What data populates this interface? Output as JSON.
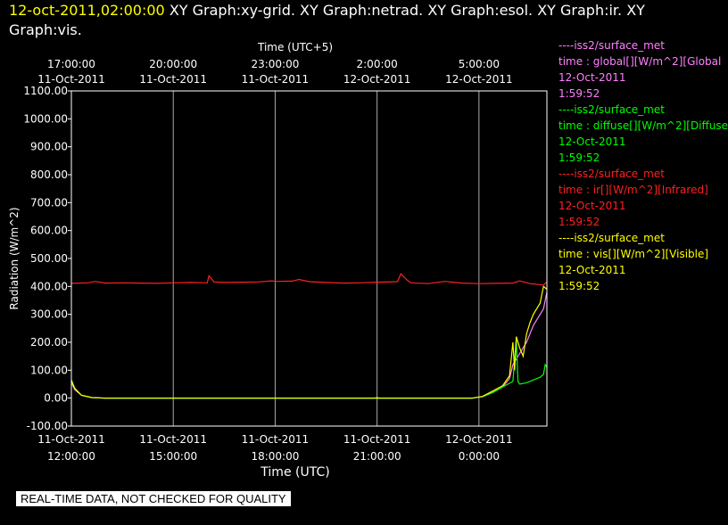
{
  "header": {
    "date": "12-oct-2011,02:00:00",
    "graphs": "XY Graph:xy-grid.  XY Graph:netrad.  XY Graph:esol.  XY Graph:ir.  XY Graph:vis."
  },
  "disclaimer": "REAL-TIME DATA, NOT CHECKED FOR QUALITY",
  "legend": [
    {
      "source": "----iss2/surface_met",
      "field": "time : global[][W/m^2][Global",
      "date": "12-Oct-2011",
      "time": "1:59:52",
      "color": "#ff80ff"
    },
    {
      "source": "----iss2/surface_met",
      "field": "time : diffuse[][W/m^2][Diffuse",
      "date": "12-Oct-2011",
      "time": "1:59:52",
      "color": "#00ff00"
    },
    {
      "source": "----iss2/surface_met",
      "field": "time : ir[][W/m^2][Infrared]",
      "date": "12-Oct-2011",
      "time": "1:59:52",
      "color": "#ff2020"
    },
    {
      "source": "----iss2/surface_met",
      "field": "time : vis[][W/m^2][Visible]",
      "date": "12-Oct-2011",
      "time": "1:59:52",
      "color": "#ffff00"
    }
  ],
  "chart_data": {
    "type": "line",
    "xlabel": "Time (UTC)",
    "xlabel_top": "Time (UTC+5)",
    "ylabel": "Radiation (W/m^2)",
    "ylim": [
      -100,
      1100
    ],
    "xlim_hours_utc": [
      "11-Oct-2011 12:00:00",
      "12-Oct-2011 02:00:00"
    ],
    "grid": true,
    "y_ticks": [
      "-100.00",
      "0.00",
      "100.00",
      "200.00",
      "300.00",
      "400.00",
      "500.00",
      "600.00",
      "700.00",
      "800.00",
      "900.00",
      "1000.00",
      "1100.00"
    ],
    "x_ticks_bottom": [
      {
        "date": "11-Oct-2011",
        "time": "12:00:00",
        "h": 12
      },
      {
        "date": "11-Oct-2011",
        "time": "15:00:00",
        "h": 15
      },
      {
        "date": "11-Oct-2011",
        "time": "18:00:00",
        "h": 18
      },
      {
        "date": "11-Oct-2011",
        "time": "21:00:00",
        "h": 21
      },
      {
        "date": "12-Oct-2011",
        "time": "0:00:00",
        "h": 24
      }
    ],
    "x_ticks_top": [
      {
        "date": "11-Oct-2011",
        "time": "17:00:00",
        "h": 12
      },
      {
        "date": "11-Oct-2011",
        "time": "20:00:00",
        "h": 15
      },
      {
        "date": "11-Oct-2011",
        "time": "23:00:00",
        "h": 18
      },
      {
        "date": "12-Oct-2011",
        "time": "2:00:00",
        "h": 21
      },
      {
        "date": "12-Oct-2011",
        "time": "5:00:00",
        "h": 24
      }
    ],
    "series": [
      {
        "name": "ir",
        "color": "#ff2020",
        "x": [
          12,
          12.5,
          12.7,
          13,
          13.5,
          14,
          14.5,
          15,
          15.5,
          16,
          16.05,
          16.2,
          16.5,
          17,
          17.5,
          17.9,
          18,
          18.5,
          18.7,
          19,
          19.5,
          20,
          20.5,
          21,
          21.6,
          21.7,
          21.9,
          22,
          22.5,
          23,
          23.5,
          24,
          24.5,
          25,
          25.2,
          25.5,
          25.9,
          26
        ],
        "y": [
          411,
          413,
          418,
          412,
          413,
          412,
          411,
          413,
          414,
          413,
          438,
          416,
          414,
          415,
          416,
          420,
          418,
          419,
          425,
          417,
          414,
          412,
          413,
          415,
          417,
          445,
          421,
          413,
          410,
          418,
          412,
          410,
          411,
          412,
          420,
          410,
          405,
          416
        ]
      },
      {
        "name": "global",
        "color": "#ff80ff",
        "x": [
          12,
          12.1,
          12.3,
          12.6,
          13,
          14,
          16,
          18,
          20,
          21.3,
          22,
          23,
          23.8,
          24.1,
          24.4,
          24.7,
          24.9,
          25,
          25.2,
          25.4,
          25.6,
          25.8,
          25.9,
          26
        ],
        "y": [
          55,
          30,
          10,
          2,
          0,
          0,
          0,
          0,
          0,
          0,
          0,
          0,
          0,
          5,
          20,
          40,
          70,
          120,
          160,
          200,
          260,
          300,
          320,
          380
        ]
      },
      {
        "name": "diffuse",
        "color": "#00ff00",
        "x": [
          12,
          12.1,
          12.3,
          12.6,
          13,
          14,
          16,
          18,
          20,
          20.95,
          21,
          21.05,
          21.3,
          22,
          23,
          23.8,
          24.1,
          24.4,
          24.7,
          25,
          25.1,
          25.15,
          25.2,
          25.4,
          25.6,
          25.8,
          25.9,
          25.95,
          26
        ],
        "y": [
          60,
          35,
          10,
          2,
          0,
          0,
          0,
          0,
          0,
          0,
          4,
          0,
          0,
          0,
          0,
          0,
          5,
          20,
          40,
          60,
          210,
          60,
          50,
          55,
          65,
          75,
          85,
          120,
          110
        ]
      },
      {
        "name": "vis",
        "color": "#ffff00",
        "x": [
          12,
          12.1,
          12.3,
          12.6,
          13,
          14,
          16,
          18,
          20,
          21.3,
          22,
          23,
          23.8,
          24.1,
          24.4,
          24.7,
          24.9,
          25,
          25.05,
          25.1,
          25.2,
          25.3,
          25.4,
          25.5,
          25.6,
          25.8,
          25.9,
          26
        ],
        "y": [
          65,
          35,
          10,
          2,
          0,
          0,
          0,
          0,
          0,
          0,
          0,
          0,
          0,
          6,
          25,
          45,
          80,
          200,
          100,
          220,
          180,
          150,
          230,
          270,
          300,
          340,
          400,
          390
        ]
      }
    ]
  }
}
